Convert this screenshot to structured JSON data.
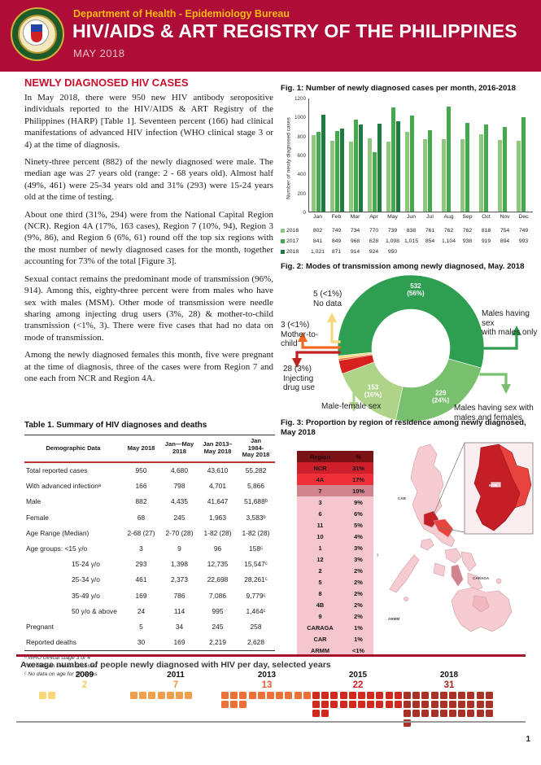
{
  "header": {
    "department": "Department of Health - Epidemiology Bureau",
    "title": "HIV/AIDS & ART REGISTRY OF THE PHILIPPINES",
    "period": "MAY 2018"
  },
  "section_title": "NEWLY DIAGNOSED HIV CASES",
  "paragraphs": [
    "In May 2018, there were 950 new HIV antibody seropositive individuals reported to the HIV/AIDS & ART Registry of the Philippines (HARP) [Table 1]. Seventeen percent (166) had clinical manifestations of advanced HIV infection (WHO clinical stage 3 or 4) at the time of diagnosis.",
    "Ninety-three percent (882) of the newly diagnosed were male. The median age was 27 years old (range: 2 - 68 years old). Almost half (49%, 461) were 25-34 years old and 31% (293) were 15-24 years old at the time of testing.",
    "About one third (31%, 294) were from the National Capital Region (NCR). Region 4A (17%, 163 cases), Region 7 (10%, 94), Region 3 (9%, 86), and Region 6 (6%, 61) round off the top six regions with the most number of newly diagnosed cases for the month, together accounting for 73% of the total [Figure 3].",
    "Sexual contact remains the predominant mode of transmission (96%, 914). Among this, eighty-three percent were from males who have sex with males (MSM). Other mode of transmission were needle sharing among injecting drug users (3%, 28) & mother-to-child transmission (<1%, 3). There were five cases that had no data on mode of transmission.",
    "Among the newly diagnosed females this month, five were pregnant at the time of diagnosis, three of the cases were from Region 7 and one each from NCR and Region 4A."
  ],
  "fig1": {
    "title": "Fig. 1: Number of newly diagnosed cases per month, 2016-2018",
    "ylabel": "Number of newly diagnosed cases"
  },
  "fig2": {
    "title": "Fig. 2: Modes of transmission among newly diagnosed, May. 2018",
    "callouts": {
      "no_data": "5 (<1%)\nNo data",
      "mother_to_child": "3 (<1%)\nMother-to-\nchild",
      "idu": "28 (3%)\nInjecting\ndrug use",
      "male_female": "Male-female sex",
      "msm_only": "Males having sex\nwith males only",
      "msm_mf": "Males having sex with\nmales and females"
    }
  },
  "table1": {
    "title": "Table 1. Summary of HIV diagnoses and deaths",
    "headers": [
      "Demographic Data",
      "May 2018",
      "Jan—May\n2018",
      "Jan 2013–\nMay 2018",
      "Jan\n1984-\nMay 2018"
    ],
    "rows": [
      {
        "label": "Total reported cases",
        "indent": false,
        "values": [
          "950",
          "4,680",
          "43,610",
          "55,282"
        ]
      },
      {
        "label": "With advanced infectionᵃ",
        "indent": false,
        "values": [
          "166",
          "798",
          "4,701",
          "5,866"
        ]
      },
      {
        "label": "Male",
        "indent": false,
        "values": [
          "882",
          "4,435",
          "41,647",
          "51,688ᵇ"
        ]
      },
      {
        "label": "Female",
        "indent": false,
        "values": [
          "68",
          "245",
          "1,963",
          "3,583ᵇ"
        ]
      },
      {
        "label": "Age Range (Median)",
        "indent": false,
        "values": [
          "2-68 (27)",
          "2-70 (28)",
          "1-82 (28)",
          "1-82 (28)"
        ]
      },
      {
        "label": "Age groups: <15 y/o",
        "indent": false,
        "values": [
          "3",
          "9",
          "96",
          "158ᶜ"
        ]
      },
      {
        "label": "15-24 y/o",
        "indent": true,
        "values": [
          "293",
          "1,398",
          "12,735",
          "15,547ᶜ"
        ]
      },
      {
        "label": "25-34 y/o",
        "indent": true,
        "values": [
          "461",
          "2,373",
          "22,698",
          "28,261ᶜ"
        ]
      },
      {
        "label": "35-49 y/o",
        "indent": true,
        "values": [
          "169",
          "786",
          "7,086",
          "9,779ᶜ"
        ]
      },
      {
        "label": "50 y/o & above",
        "indent": true,
        "values": [
          "24",
          "114",
          "995",
          "1,464ᶜ"
        ]
      },
      {
        "label": "Pregnant",
        "indent": false,
        "values": [
          "5",
          "34",
          "245",
          "258"
        ]
      },
      {
        "label": "Reported deaths",
        "indent": false,
        "values": [
          "30",
          "169",
          "2,219",
          "2,628"
        ]
      }
    ],
    "footnotes": [
      "ᵃ WHO clinical stage 3 or 4",
      "ᵇ No data on sex for 11 cases",
      "ᶜ No data on age for 73 cases"
    ]
  },
  "fig3": {
    "title": "Fig. 3: Proportion by region of residence among newly diagnosed, May 2018",
    "table_headers": [
      "Region",
      "%"
    ],
    "map_labels": [
      "CAR",
      "CARAGA",
      "ARMM",
      "NCR"
    ]
  },
  "daily": {
    "title": "Average number of people newly diagnosed with HIV per day, selected years"
  },
  "page_number": "1",
  "colors": {
    "header_bg": "#AE0D38",
    "accent_red": "#C8102E",
    "gold": "#FDB913",
    "green_2016": "#8DC87E",
    "green_2017": "#46A84C",
    "green_2018": "#1E7B41",
    "region_header_bg": "#7A1216",
    "region_row_light": "#F5C6CD"
  },
  "chart_data": [
    {
      "id": "fig1",
      "type": "bar",
      "title": "Fig. 1: Number of newly diagnosed cases per month, 2016-2018",
      "xlabel": "",
      "ylabel": "Number of newly diagnosed cases",
      "ylim": [
        0,
        1200
      ],
      "ytick_step": 200,
      "grid": false,
      "legend_position": "bottom-table",
      "categories": [
        "Jan",
        "Feb",
        "Mar",
        "Apr",
        "May",
        "Jun",
        "Jul",
        "Aug",
        "Sep",
        "Oct",
        "Nov",
        "Dec"
      ],
      "series": [
        {
          "name": "2016",
          "color": "#8DC87E",
          "values": [
            802,
            749,
            734,
            770,
            739,
            838,
            761,
            762,
            762,
            818,
            754,
            749
          ],
          "display": [
            "802",
            "749",
            "734",
            "770",
            "739",
            "838",
            "761",
            "762",
            "762",
            "818",
            "754",
            "749"
          ]
        },
        {
          "name": "2017",
          "color": "#46A84C",
          "values": [
            841,
            849,
            968,
            628,
            1098,
            1015,
            854,
            1104,
            938,
            919,
            894,
            993
          ],
          "display": [
            "841",
            "849",
            "968",
            "628",
            "1,098",
            "1,015",
            "854",
            "1,104",
            "938",
            "919",
            "894",
            "993"
          ]
        },
        {
          "name": "2018",
          "color": "#1E7B41",
          "values": [
            1021,
            871,
            914,
            924,
            950
          ],
          "display": [
            "1,021",
            "871",
            "914",
            "924",
            "950",
            "",
            "",
            "",
            "",
            "",
            "",
            ""
          ]
        }
      ]
    },
    {
      "id": "fig2",
      "type": "pie",
      "subtype": "donut",
      "title": "Fig. 2: Modes of transmission among newly diagnosed, May. 2018",
      "start_angle_deg_from_top": 264,
      "segments": [
        {
          "label": "Males having sex with males only",
          "value": 532,
          "pct": 56,
          "pct_display": "56%",
          "color": "#2E9E50",
          "inner_label": "532\n(56%)"
        },
        {
          "label": "Males having sex with males and females",
          "value": 229,
          "pct": 24,
          "pct_display": "24%",
          "color": "#78C06E",
          "inner_label": "229\n(24%)"
        },
        {
          "label": "Male-female sex",
          "value": 153,
          "pct": 16,
          "pct_display": "16%",
          "color": "#ADD488",
          "inner_label": "153\n(16%)"
        },
        {
          "label": "Injecting drug use",
          "value": 28,
          "pct": 3,
          "pct_display": "3%",
          "color": "#D7211E",
          "inner_label": ""
        },
        {
          "label": "Mother-to-child",
          "value": 3,
          "pct": 0.4,
          "pct_display": "<1%",
          "color": "#F26A21",
          "inner_label": ""
        },
        {
          "label": "No data",
          "value": 5,
          "pct": 0.6,
          "pct_display": "<1%",
          "color": "#F6D97E",
          "inner_label": ""
        }
      ]
    },
    {
      "id": "fig3",
      "type": "table",
      "title": "Fig. 3: Proportion by region of residence among newly diagnosed, May 2018",
      "columns": [
        "Region",
        "%"
      ],
      "rows": [
        {
          "region": "NCR",
          "pct": "31%",
          "bg": "#CE1F2A"
        },
        {
          "region": "4A",
          "pct": "17%",
          "bg": "#EF3038"
        },
        {
          "region": "7",
          "pct": "10%",
          "bg": "#D2848E"
        },
        {
          "region": "3",
          "pct": "9%",
          "bg": "#F5C6CD"
        },
        {
          "region": "6",
          "pct": "6%",
          "bg": "#F5C6CD"
        },
        {
          "region": "11",
          "pct": "5%",
          "bg": "#F5C6CD"
        },
        {
          "region": "10",
          "pct": "4%",
          "bg": "#F5C6CD"
        },
        {
          "region": "1",
          "pct": "3%",
          "bg": "#F5C6CD"
        },
        {
          "region": "12",
          "pct": "3%",
          "bg": "#F5C6CD"
        },
        {
          "region": "2",
          "pct": "2%",
          "bg": "#F5C6CD"
        },
        {
          "region": "5",
          "pct": "2%",
          "bg": "#F5C6CD"
        },
        {
          "region": "8",
          "pct": "2%",
          "bg": "#F5C6CD"
        },
        {
          "region": "4B",
          "pct": "2%",
          "bg": "#F5C6CD"
        },
        {
          "region": "9",
          "pct": "2%",
          "bg": "#F5C6CD"
        },
        {
          "region": "CARAGA",
          "pct": "1%",
          "bg": "#F5C6CD"
        },
        {
          "region": "CAR",
          "pct": "1%",
          "bg": "#F5C6CD"
        },
        {
          "region": "ARMM",
          "pct": "<1%",
          "bg": "#F5C6CD"
        }
      ]
    },
    {
      "id": "daily_waffle",
      "type": "waffle",
      "title": "Average number of people newly diagnosed with HIV per day, selected years",
      "columns_per_row": 10,
      "groups": [
        {
          "year": "2009",
          "count": 2,
          "color": "#F7D778",
          "count_color": "#F2CB5F"
        },
        {
          "year": "2011",
          "count": 7,
          "color": "#F0A04C",
          "count_color": "#EF9441"
        },
        {
          "year": "2013",
          "count": 13,
          "color": "#EC7038",
          "count_color": "#E55D30"
        },
        {
          "year": "2015",
          "count": 22,
          "color": "#D2291F",
          "count_color": "#CC2026"
        },
        {
          "year": "2018",
          "count": 31,
          "color": "#A93226",
          "count_color": "#9C2B1F"
        }
      ]
    }
  ]
}
